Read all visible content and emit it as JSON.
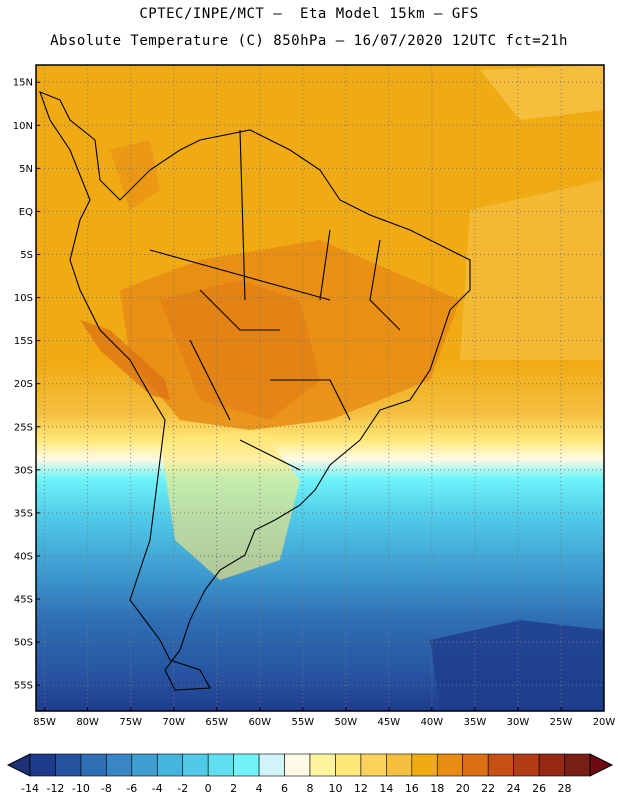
{
  "header": {
    "line1": "CPTEC/INPE/MCT –  Eta Model 15km – GFS",
    "line2": "Absolute Temperature (C) 850hPa – 16/07/2020 12UTC fct=21h"
  },
  "map": {
    "lat_range": [
      -58,
      17
    ],
    "lon_range": [
      -86,
      -20
    ],
    "lat_labels": [
      "15N",
      "10N",
      "5N",
      "EQ",
      "5S",
      "10S",
      "15S",
      "20S",
      "25S",
      "30S",
      "35S",
      "40S",
      "45S",
      "50S",
      "55S"
    ],
    "lat_values": [
      15,
      10,
      5,
      0,
      -5,
      -10,
      -15,
      -20,
      -25,
      -30,
      -35,
      -40,
      -45,
      -50,
      -55
    ],
    "lon_labels": [
      "85W",
      "80W",
      "75W",
      "70W",
      "65W",
      "60W",
      "55W",
      "50W",
      "45W",
      "40W",
      "35W",
      "30W",
      "25W",
      "20W"
    ],
    "lon_values": [
      -85,
      -80,
      -75,
      -70,
      -65,
      -60,
      -55,
      -50,
      -45,
      -40,
      -35,
      -30,
      -25,
      -20
    ],
    "grid": true
  },
  "colorbar": {
    "labels": [
      "-14",
      "-12",
      "-10",
      "-8",
      "-6",
      "-4",
      "-2",
      "0",
      "2",
      "4",
      "6",
      "8",
      "10",
      "12",
      "14",
      "16",
      "18",
      "20",
      "22",
      "24",
      "26",
      "28"
    ],
    "colors": [
      "#1e3c8c",
      "#2652a0",
      "#2e6eb4",
      "#3a86c4",
      "#3f9ed2",
      "#45b4de",
      "#50cae8",
      "#5ee0f0",
      "#70f4fa",
      "#d0f4fa",
      "#fffae6",
      "#fff5a0",
      "#ffe878",
      "#fbd25a",
      "#f5c040",
      "#f0aa14",
      "#e88c14",
      "#dc6e14",
      "#c85014",
      "#b43c14",
      "#962814",
      "#781e14"
    ],
    "low_color": "#1e3278",
    "high_color": "#6e0a14"
  }
}
